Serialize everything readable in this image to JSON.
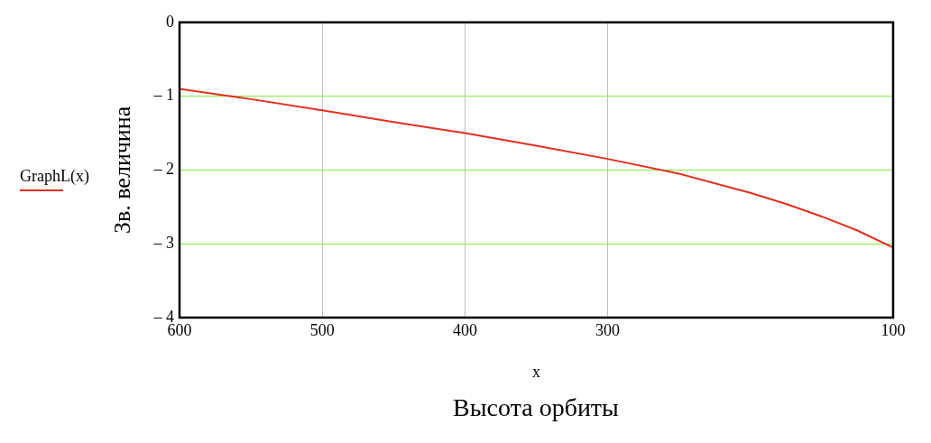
{
  "chart_data": {
    "type": "line",
    "xlabel": "x",
    "ylabel": "Зв. величина",
    "annotations": [
      "Высота орбиты"
    ],
    "x": [
      600,
      550,
      500,
      450,
      400,
      350,
      300,
      250,
      200,
      175,
      150,
      125,
      100
    ],
    "series": [
      {
        "name": "GraphL(x)",
        "color": "#e03020",
        "values": [
          -0.9,
          -1.04,
          -1.19,
          -1.35,
          -1.5,
          -1.67,
          -1.85,
          -2.05,
          -2.31,
          -2.46,
          -2.63,
          -2.82,
          -3.05
        ]
      }
    ],
    "xlim": [
      600,
      100
    ],
    "xticks": [
      600,
      500,
      400,
      300,
      100
    ],
    "ylim": [
      -4,
      0
    ],
    "yticks": [
      0,
      {
        "value": -1,
        "label": "– 1"
      },
      {
        "value": -2,
        "label": "– 2"
      },
      {
        "value": -3,
        "label": "– 3"
      },
      {
        "value": -4,
        "label": "– 4"
      }
    ],
    "grid": true,
    "legend": "left",
    "marker": "none",
    "line_style": "solid"
  }
}
